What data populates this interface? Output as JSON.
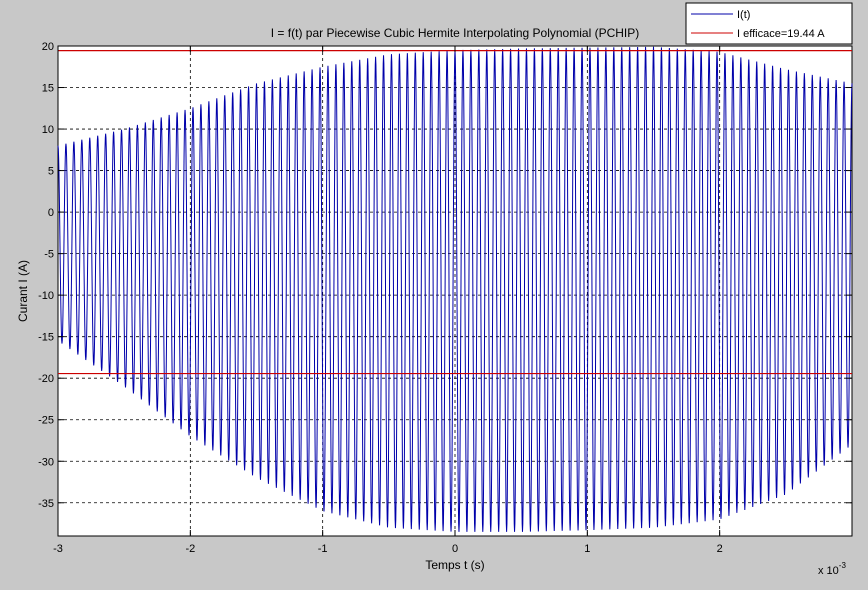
{
  "chart_data": {
    "type": "line",
    "title": "I = f(t) par Piecewise Cubic Hermite Interpolating Polynomial (PCHIP)",
    "xlabel": "Temps t (s)",
    "ylabel": "Curant I (A)",
    "x_exponent_label": "x 10",
    "x_exponent_power": "-3",
    "xlim": [
      -3,
      3
    ],
    "ylim": [
      -39,
      20
    ],
    "x_ticks": [
      -3,
      -2,
      -1,
      0,
      1,
      2
    ],
    "x_tick_labels": [
      "-3",
      "-2",
      "-1",
      "0",
      "1",
      "2"
    ],
    "y_ticks": [
      20,
      15,
      10,
      5,
      0,
      -5,
      -10,
      -15,
      -20,
      -25,
      -30,
      -35
    ],
    "y_tick_labels": [
      "20",
      "15",
      "10",
      "5",
      "0",
      "-5",
      "-10",
      "-15",
      "-20",
      "-25",
      "-30",
      "-35"
    ],
    "grid": true,
    "legend_position": "top-right",
    "series": [
      {
        "name": "I(t)",
        "color": "#0000aa",
        "kind": "oscillation",
        "cycles": 100,
        "envelope_t": [
          -3.0,
          -2.5,
          -2.0,
          -1.5,
          -1.0,
          -0.5,
          0.0,
          0.5,
          1.0,
          1.5,
          2.0,
          2.5,
          3.0
        ],
        "envelope_max": [
          8,
          10,
          12.5,
          15.5,
          17.5,
          19,
          19.5,
          19.7,
          19.8,
          19.9,
          19.3,
          17.2,
          15.5
        ],
        "envelope_min": [
          -15.5,
          -21,
          -27,
          -32,
          -36,
          -38,
          -38.5,
          -38.5,
          -38.3,
          -38,
          -37,
          -34,
          -28
        ]
      },
      {
        "name": "I efficace=19.44 A",
        "color": "#cc0000",
        "kind": "hline",
        "values": [
          19.44,
          -19.44
        ]
      }
    ]
  }
}
